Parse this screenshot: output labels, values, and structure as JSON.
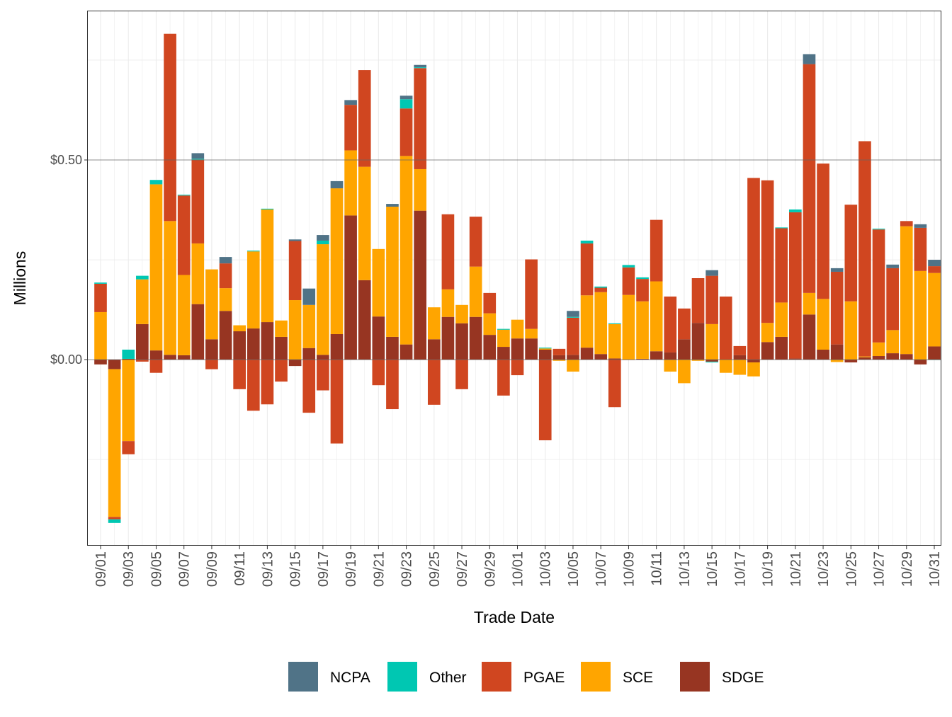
{
  "chart_data": {
    "type": "bar",
    "stacked": true,
    "xlabel": "Trade Date",
    "ylabel": "Millions",
    "ylim": [
      -0.466,
      0.874
    ],
    "yticks": [
      0,
      0.5
    ],
    "ytick_labels": [
      "$0.00",
      "$0.50"
    ],
    "grid": true,
    "legend_position": "bottom",
    "categories": [
      "09/01",
      "09/02",
      "09/03",
      "09/04",
      "09/05",
      "09/06",
      "09/07",
      "09/08",
      "09/09",
      "09/10",
      "09/11",
      "09/12",
      "09/13",
      "09/14",
      "09/15",
      "09/16",
      "09/17",
      "09/18",
      "09/19",
      "09/20",
      "09/21",
      "09/22",
      "09/23",
      "09/24",
      "09/25",
      "09/26",
      "09/27",
      "09/28",
      "09/29",
      "09/30",
      "10/01",
      "10/02",
      "10/03",
      "10/04",
      "10/05",
      "10/06",
      "10/07",
      "10/08",
      "10/09",
      "10/10",
      "10/11",
      "10/12",
      "10/13",
      "10/14",
      "10/15",
      "10/16",
      "10/17",
      "10/18",
      "10/19",
      "10/20",
      "10/21",
      "10/22",
      "10/23",
      "10/24",
      "10/25",
      "10/26",
      "10/27",
      "10/28",
      "10/29",
      "10/30",
      "10/31"
    ],
    "xtick_labels": [
      "09/01",
      "09/03",
      "09/05",
      "09/07",
      "09/09",
      "09/11",
      "09/13",
      "09/15",
      "09/17",
      "09/19",
      "09/21",
      "09/23",
      "09/25",
      "09/27",
      "09/29",
      "10/01",
      "10/03",
      "10/05",
      "10/07",
      "10/09",
      "10/11",
      "10/13",
      "10/15",
      "10/17",
      "10/19",
      "10/21",
      "10/23",
      "10/25",
      "10/27",
      "10/29",
      "10/31"
    ],
    "series": [
      {
        "name": "SDGE",
        "color": "#973522",
        "values": [
          -0.012,
          -0.024,
          0.002,
          0.089,
          0.023,
          0.012,
          0.011,
          0.139,
          0.051,
          0.122,
          0.071,
          0.078,
          0.094,
          0.057,
          -0.016,
          0.029,
          0.012,
          0.064,
          0.361,
          0.199,
          0.108,
          0.057,
          0.038,
          0.373,
          0.051,
          0.107,
          0.091,
          0.107,
          0.062,
          0.032,
          0.053,
          0.053,
          0.025,
          0.011,
          0.012,
          0.03,
          0.014,
          0.003,
          -0.001,
          0.002,
          0.021,
          0.018,
          0.051,
          0.092,
          -0.005,
          0,
          0.011,
          -0.007,
          0.044,
          0.057,
          0.003,
          0.113,
          0.025,
          0.038,
          -0.007,
          0.006,
          0.009,
          0.016,
          0.014,
          -0.012,
          0.033
        ]
      },
      {
        "name": "SCE",
        "color": "#FFA500",
        "values": [
          0.119,
          -0.37,
          -0.204,
          0.112,
          0.416,
          0.335,
          0.201,
          0.152,
          0.175,
          0.057,
          0.015,
          0.193,
          0.282,
          0.041,
          0.149,
          0.108,
          0.277,
          0.365,
          0.163,
          0.284,
          0.169,
          0.326,
          0.472,
          0.104,
          0.08,
          0.069,
          0.046,
          0.126,
          0.054,
          0.043,
          0.047,
          0.024,
          0.003,
          -0.003,
          -0.03,
          0.131,
          0.155,
          0.086,
          0.162,
          0.144,
          0.175,
          -0.03,
          -0.059,
          -0.003,
          0.089,
          -0.033,
          -0.038,
          -0.035,
          0.048,
          0.086,
          0,
          0.054,
          0.127,
          -0.006,
          0.146,
          0.002,
          0.034,
          0.058,
          0.32,
          0.222,
          0.184
        ]
      },
      {
        "name": "PGAE",
        "color": "#D04620",
        "values": [
          0.071,
          -0.006,
          -0.033,
          -0.005,
          -0.033,
          0.469,
          0.199,
          0.21,
          -0.024,
          0.062,
          -0.074,
          -0.128,
          -0.112,
          -0.055,
          0.148,
          -0.133,
          -0.077,
          -0.21,
          0.114,
          0.242,
          -0.064,
          -0.124,
          0.119,
          0.253,
          -0.113,
          0.188,
          -0.074,
          0.125,
          0.051,
          -0.09,
          -0.039,
          0.174,
          -0.202,
          0.016,
          0.093,
          0.13,
          0.011,
          -0.119,
          0.069,
          0.056,
          0.154,
          0.14,
          0.077,
          0.112,
          0.121,
          0.158,
          0.023,
          0.455,
          0.357,
          0.186,
          0.366,
          0.573,
          0.339,
          0.182,
          0.242,
          0.539,
          0.283,
          0.155,
          0.013,
          0.108,
          0.017
        ]
      },
      {
        "name": "Other",
        "color": "#00C7B2",
        "values": [
          0.003,
          -0.009,
          0.023,
          0.009,
          0.011,
          0,
          0.002,
          0.002,
          0,
          0,
          0,
          0.002,
          0.002,
          0,
          0,
          0,
          0.009,
          0,
          0,
          0,
          0,
          0,
          0.023,
          0.002,
          0,
          0,
          0,
          0,
          0,
          0.002,
          0,
          0,
          0.002,
          0,
          0.002,
          0.007,
          0.003,
          0.002,
          0.006,
          0.004,
          0,
          0,
          0,
          0,
          -0.002,
          0,
          0,
          0,
          0,
          0.002,
          0.007,
          0,
          0,
          0,
          0,
          0,
          0.002,
          0,
          0,
          0,
          -0.001
        ]
      },
      {
        "name": "NCPA",
        "color": "#507387",
        "values": [
          0,
          0,
          0,
          0,
          0,
          0,
          0,
          0.014,
          0,
          0.016,
          0,
          0,
          0,
          0,
          0.004,
          0.041,
          0.014,
          0.018,
          0.012,
          0,
          0,
          0.007,
          0.009,
          0.006,
          0,
          0,
          0,
          0,
          0,
          0,
          0,
          0,
          0,
          0,
          0.015,
          0,
          0,
          0,
          0,
          0,
          0,
          0,
          0,
          0,
          0.014,
          0,
          0,
          0,
          0,
          0,
          0,
          0.025,
          0,
          0.009,
          0,
          0,
          0,
          0.009,
          0,
          0.009,
          0.016
        ]
      }
    ],
    "legend": [
      "NCPA",
      "Other",
      "PGAE",
      "SCE",
      "SDGE"
    ]
  }
}
